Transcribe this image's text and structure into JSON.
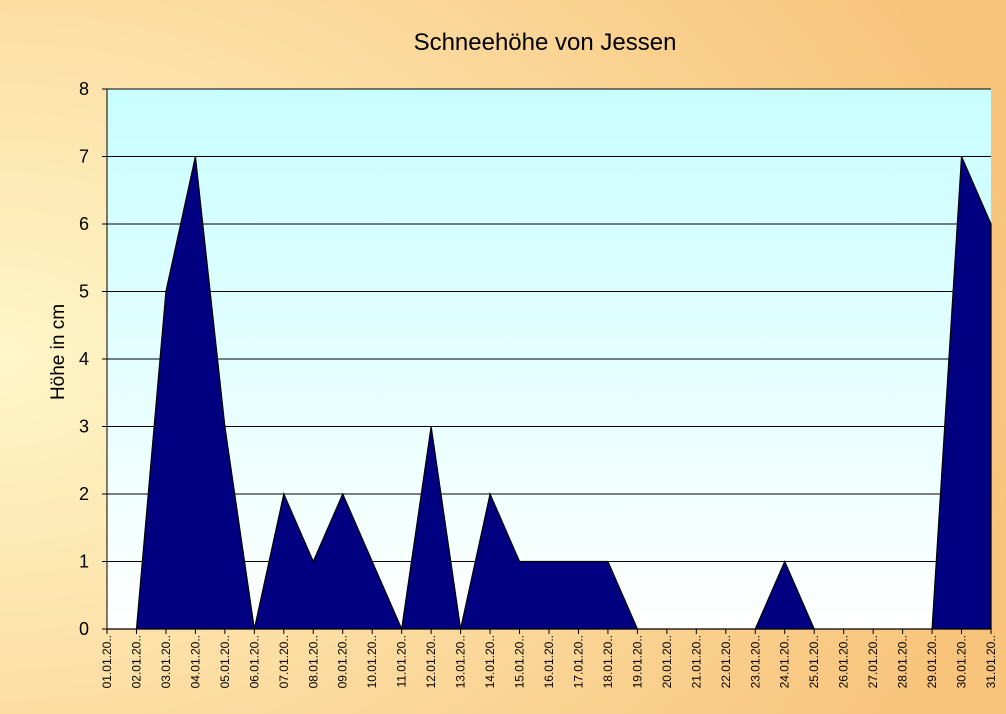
{
  "colors": {
    "background_outer": "#f8c37a",
    "background_inner": "#fff6c8",
    "plot_top": "#c8feff",
    "plot_bottom": "#ffffff",
    "area_fill": "#000080",
    "area_stroke": "#000000",
    "gridline": "#000000"
  },
  "chart_data": {
    "type": "area",
    "title": "Schneehöhe von Jessen",
    "xlabel": "",
    "ylabel": "Höhe in cm",
    "ylim": [
      0,
      8
    ],
    "yticks": [
      "0",
      "1",
      "2",
      "3",
      "4",
      "5",
      "6",
      "7",
      "8"
    ],
    "grid": true,
    "categories": [
      "01.01.20..",
      "02.01.20..",
      "03.01.20..",
      "04.01.20..",
      "05.01.20..",
      "06.01.20..",
      "07.01.20..",
      "08.01.20..",
      "09.01.20..",
      "10.01.20..",
      "11.01.20..",
      "12.01.20..",
      "13.01.20..",
      "14.01.20..",
      "15.01.20..",
      "16.01.20..",
      "17.01.20..",
      "18.01.20..",
      "19.01.20..",
      "20.01.20..",
      "21.01.20..",
      "22.01.20..",
      "23.01.20..",
      "24.01.20..",
      "25.01.20..",
      "26.01.20..",
      "27.01.20..",
      "28.01.20..",
      "29.01.20..",
      "30.01.20..",
      "31.01.20.."
    ],
    "values": [
      0,
      0,
      5,
      7,
      3,
      0,
      2,
      1,
      2,
      1,
      0,
      3,
      0,
      2,
      1,
      1,
      1,
      1,
      0,
      0,
      0,
      0,
      0,
      1,
      0,
      0,
      0,
      0,
      0,
      7,
      6
    ]
  }
}
